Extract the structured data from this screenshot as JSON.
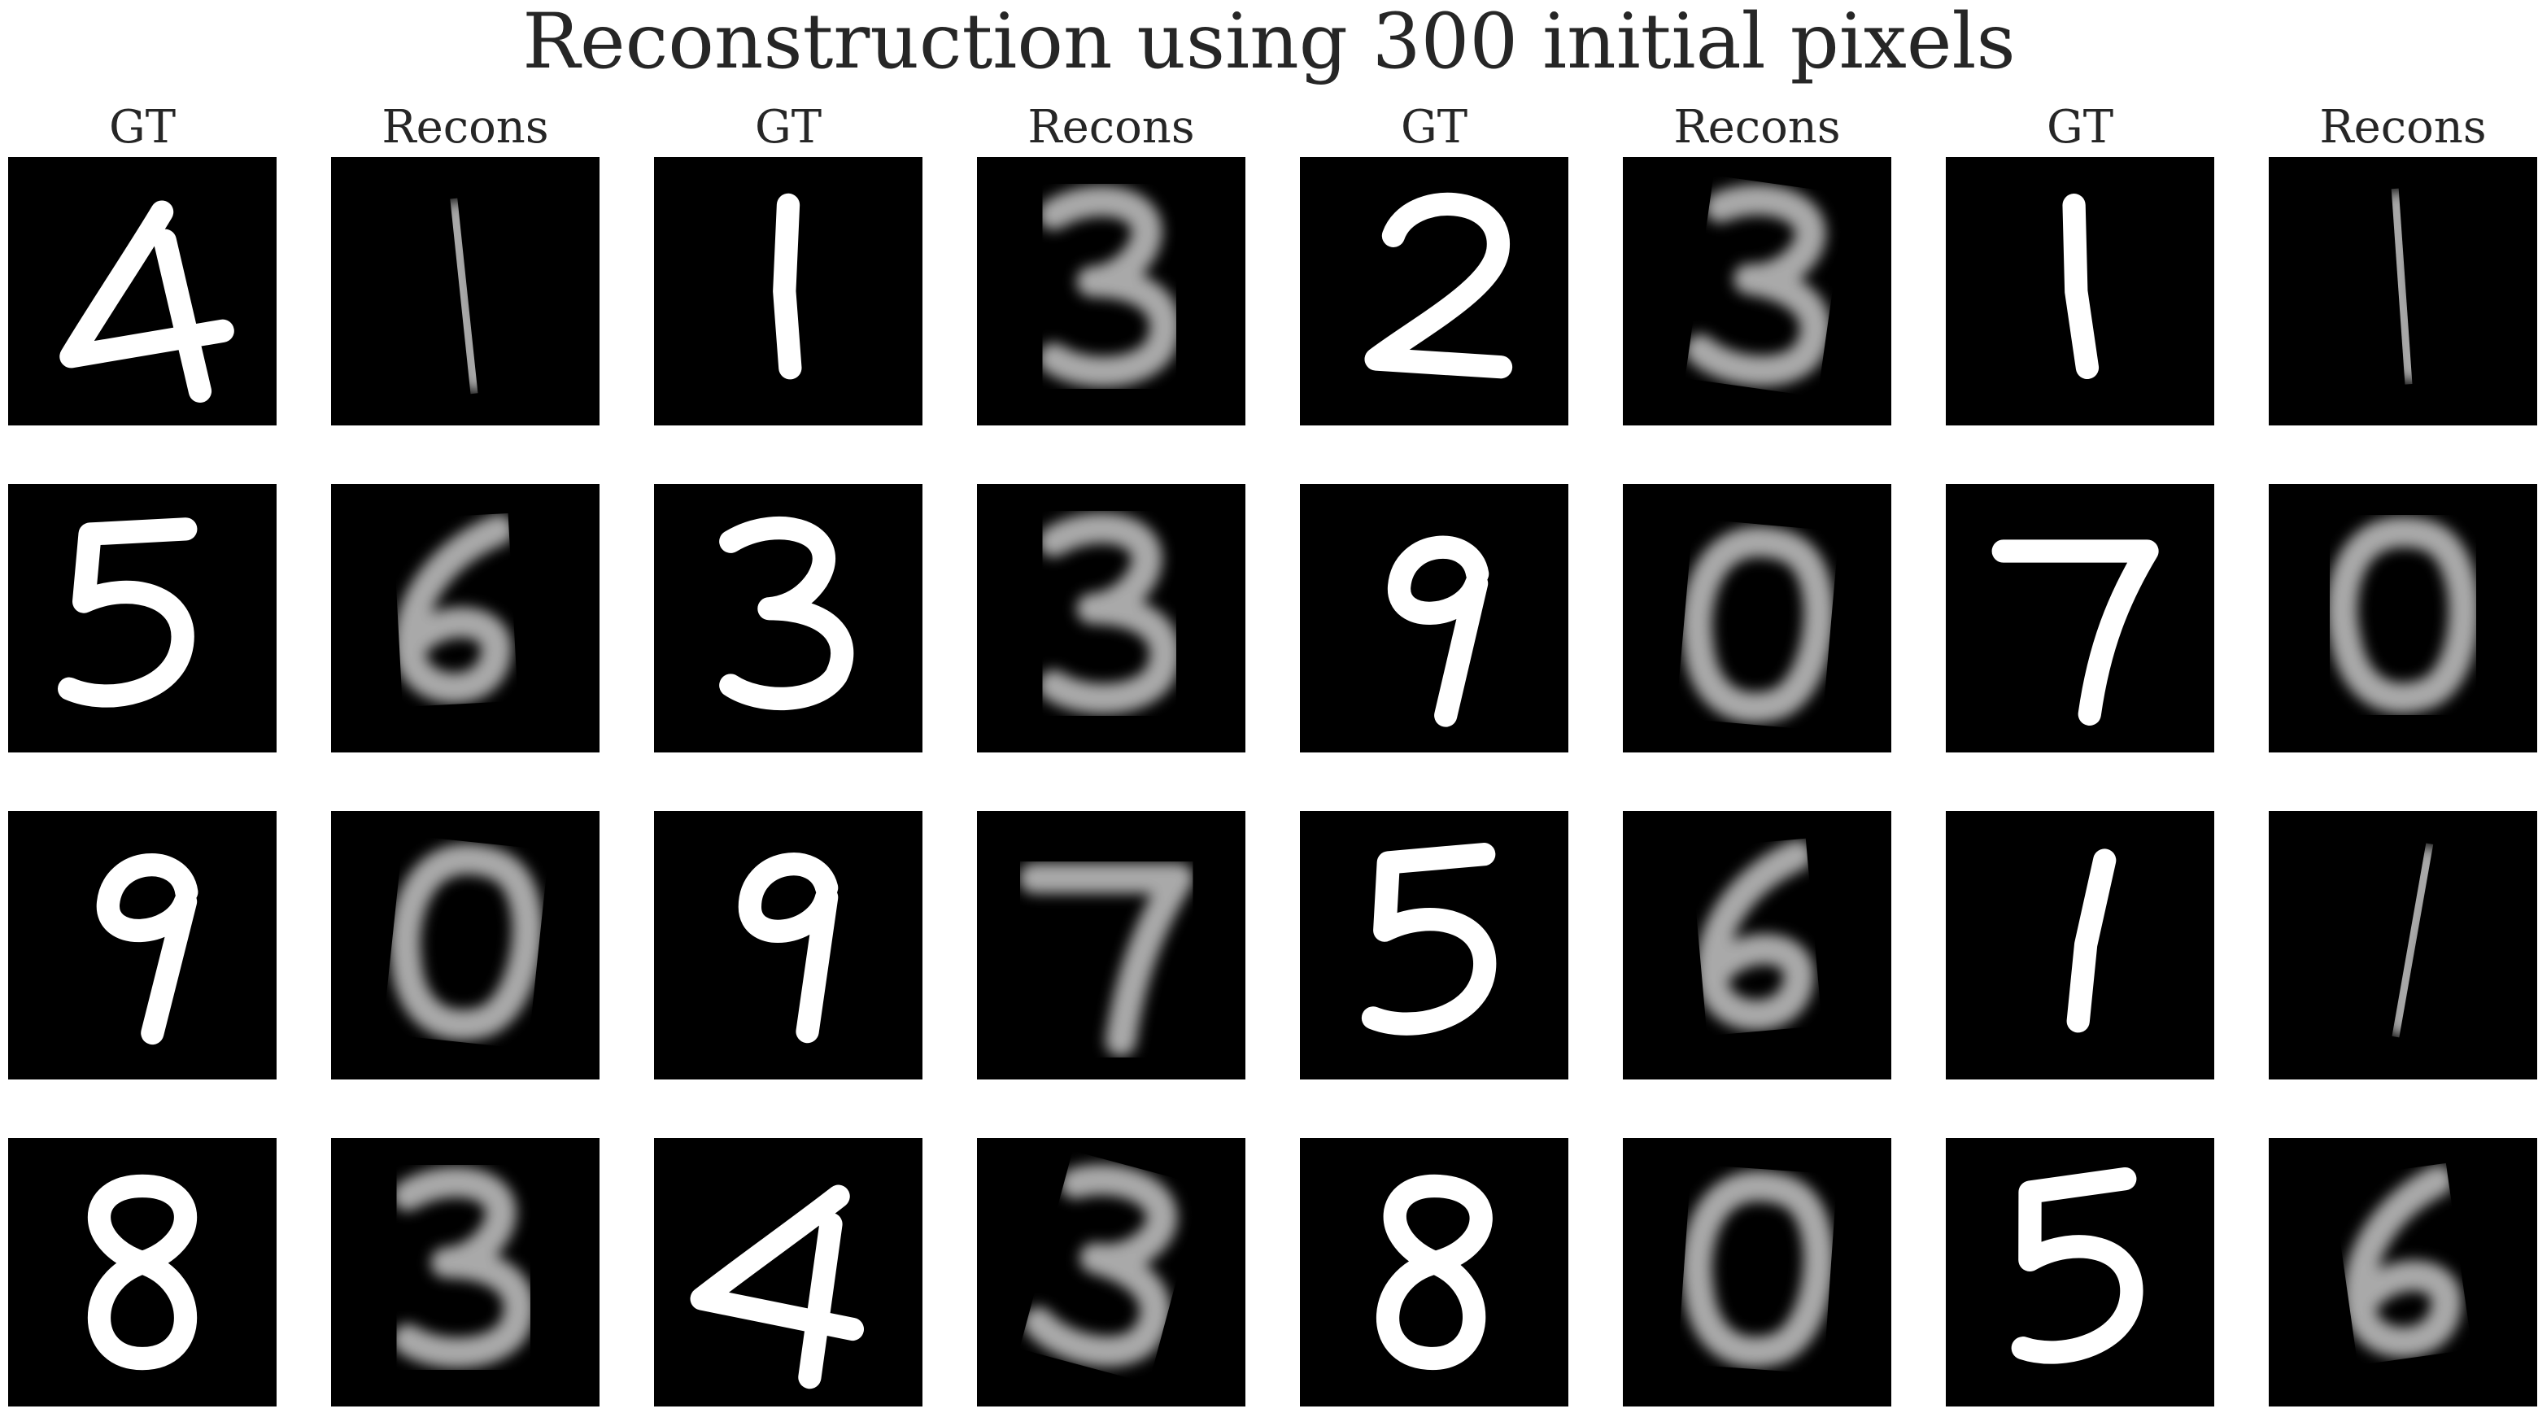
{
  "title": "Reconstruction using 300 initial pixels",
  "column_headers": [
    "GT",
    "Recons",
    "GT",
    "Recons",
    "GT",
    "Recons",
    "GT",
    "Recons"
  ],
  "rows": [
    [
      "4",
      "1",
      "2",
      "1"
    ],
    [
      "5",
      "3",
      "9",
      "7"
    ],
    [
      "9",
      "9",
      "5",
      "1"
    ],
    [
      "8",
      "4",
      "8",
      "5"
    ]
  ],
  "colors": {
    "background": "#000000",
    "ground_truth_stroke": "#ffffff",
    "reconstruction_stroke": "#a9a9a9"
  }
}
